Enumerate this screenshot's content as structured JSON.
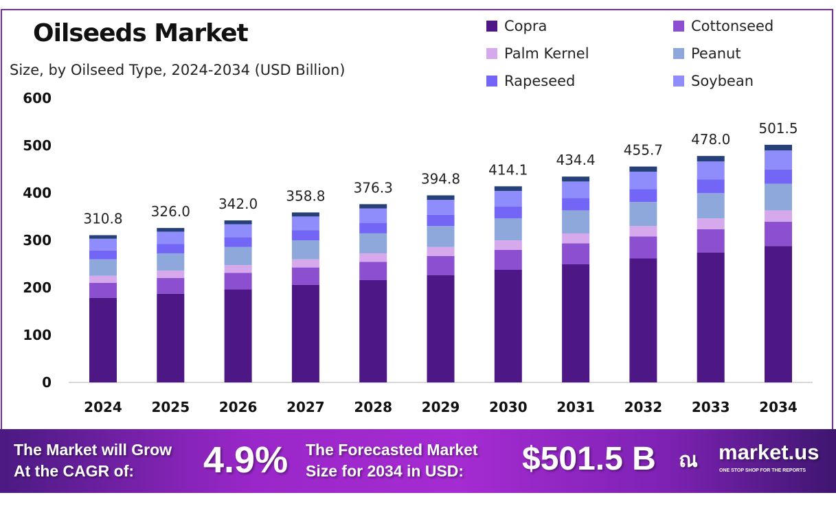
{
  "chart_data": {
    "type": "bar",
    "stacked": true,
    "title": "Oilseeds Market",
    "subtitle": "Size, by Oilseed Type, 2024-2034 (USD Billion)",
    "categories": [
      "2024",
      "2025",
      "2026",
      "2027",
      "2028",
      "2029",
      "2030",
      "2031",
      "2032",
      "2033",
      "2034"
    ],
    "totals": [
      "310.8",
      "326.0",
      "342.0",
      "358.8",
      "376.3",
      "394.8",
      "414.1",
      "434.4",
      "455.7",
      "478.0",
      "501.5"
    ],
    "ylim": [
      0,
      600
    ],
    "yticks": [
      "0",
      "100",
      "200",
      "300",
      "400",
      "500",
      "600"
    ],
    "grid": false,
    "legend": "top-right",
    "series": [
      {
        "name": "Copra",
        "color": "#4e1786",
        "values": [
          178.4,
          187.1,
          196.3,
          206.0,
          216.0,
          226.6,
          237.7,
          249.3,
          261.6,
          274.4,
          287.9
        ]
      },
      {
        "name": "Cottonseed",
        "color": "#8b4fcf",
        "values": [
          31.7,
          33.3,
          34.9,
          36.6,
          38.4,
          40.3,
          42.2,
          44.3,
          46.5,
          48.8,
          51.2
        ]
      },
      {
        "name": "Palm Kernel",
        "color": "#d6a8ec",
        "values": [
          14.9,
          15.6,
          16.4,
          17.2,
          18.1,
          19.0,
          19.9,
          20.9,
          21.9,
          22.9,
          24.1
        ]
      },
      {
        "name": "Peanut",
        "color": "#8fa8db",
        "values": [
          34.8,
          36.5,
          38.3,
          40.2,
          42.1,
          44.2,
          46.4,
          48.7,
          51.0,
          53.5,
          56.2
        ]
      },
      {
        "name": "Rapeseed",
        "color": "#7366f6",
        "values": [
          18.6,
          19.6,
          20.5,
          21.5,
          22.6,
          23.7,
          24.8,
          26.1,
          27.3,
          28.7,
          30.1
        ]
      },
      {
        "name": "Soybean",
        "color": "#8f8cfb",
        "values": [
          24.9,
          26.1,
          27.4,
          28.7,
          30.1,
          31.6,
          33.1,
          34.8,
          36.5,
          38.2,
          40.1
        ]
      },
      {
        "color": "#26407a",
        "values": [
          7.5,
          7.8,
          8.2,
          8.6,
          9.0,
          9.5,
          9.9,
          10.4,
          10.9,
          11.5,
          12.0
        ]
      }
    ]
  },
  "banner": {
    "cagr_label_1": "The Market will Grow",
    "cagr_label_2": "At the CAGR of:",
    "cagr_value": "4.9%",
    "forecast_label_1": "The Forecasted Market",
    "forecast_label_2": "Size for 2034 in USD:",
    "forecast_value": "$501.5 B",
    "brand": "market.us",
    "tagline": "ONE STOP SHOP FOR THE REPORTS"
  }
}
